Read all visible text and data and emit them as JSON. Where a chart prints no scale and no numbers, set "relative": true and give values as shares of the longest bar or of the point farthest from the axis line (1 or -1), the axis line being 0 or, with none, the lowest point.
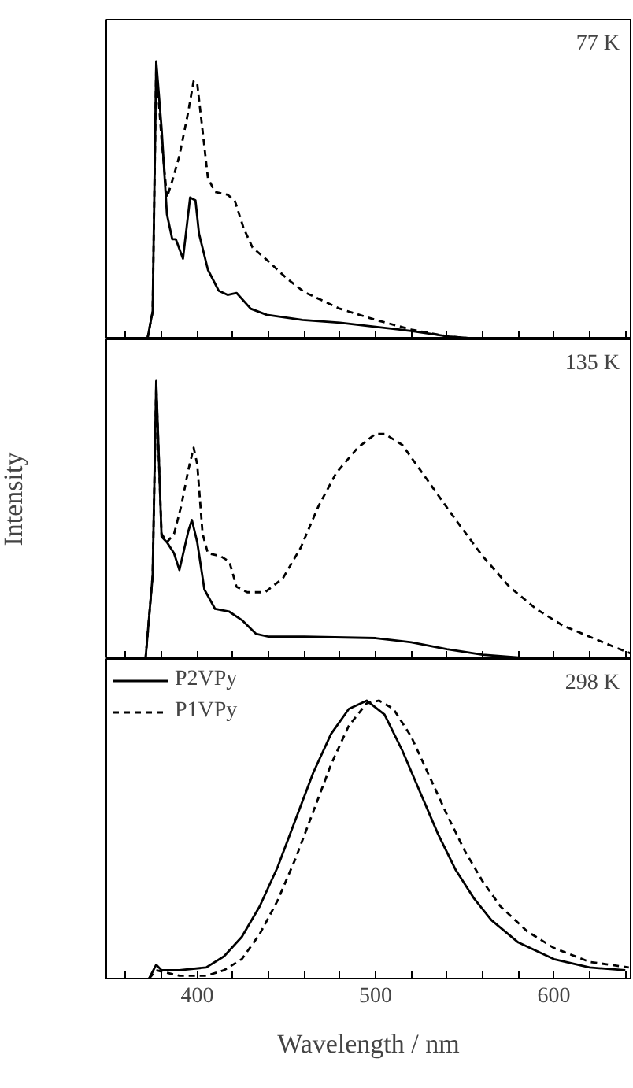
{
  "chart_data": [
    {
      "type": "line",
      "relative": true,
      "annotations": [
        "77 K"
      ],
      "tick_labels": false,
      "xlim": [
        349,
        643
      ],
      "xticks": [
        {
          "value": 360,
          "label": null
        },
        {
          "value": 380,
          "label": null
        },
        {
          "value": 400,
          "label": null
        },
        {
          "value": 420,
          "label": null
        },
        {
          "value": 440,
          "label": null
        },
        {
          "value": 460,
          "label": null
        },
        {
          "value": 480,
          "label": null
        },
        {
          "value": 500,
          "label": null
        },
        {
          "value": 520,
          "label": null
        },
        {
          "value": 540,
          "label": null
        },
        {
          "value": 560,
          "label": null
        },
        {
          "value": 580,
          "label": null
        },
        {
          "value": 600,
          "label": null
        },
        {
          "value": 620,
          "label": null
        },
        {
          "value": 640,
          "label": null
        }
      ],
      "series": [
        {
          "color": "#000000",
          "line_style": "solid",
          "x": [
            372,
            375,
            377,
            380,
            383,
            386,
            388,
            392,
            396,
            399,
            401,
            406,
            412,
            417,
            422,
            430,
            439,
            459,
            480,
            500,
            520,
            541,
            561,
            593
          ],
          "values": [
            0,
            0.1,
            1.0,
            0.76,
            0.45,
            0.36,
            0.36,
            0.29,
            0.51,
            0.5,
            0.38,
            0.25,
            0.175,
            0.16,
            0.167,
            0.11,
            0.088,
            0.07,
            0.06,
            0.045,
            0.03,
            0.01,
            0,
            0
          ]
        },
        {
          "color": "#000000",
          "line_style": "dashed",
          "x": [
            372,
            375,
            377,
            380,
            383,
            386,
            390,
            395,
            398,
            400,
            403,
            406,
            410,
            417,
            421,
            426,
            431,
            440,
            450,
            460,
            470,
            480,
            500,
            520,
            541,
            560,
            593
          ],
          "values": [
            0,
            0.1,
            0.98,
            0.72,
            0.51,
            0.57,
            0.66,
            0.82,
            0.93,
            0.92,
            0.75,
            0.58,
            0.53,
            0.52,
            0.5,
            0.4,
            0.33,
            0.28,
            0.22,
            0.17,
            0.14,
            0.11,
            0.07,
            0.035,
            0.01,
            0,
            0
          ]
        }
      ]
    },
    {
      "type": "line",
      "relative": true,
      "annotations": [
        "135 K"
      ],
      "ylabel": "Intensity",
      "tick_labels": false,
      "xlim": [
        349,
        643
      ],
      "xticks": [
        {
          "value": 360,
          "label": null
        },
        {
          "value": 380,
          "label": null
        },
        {
          "value": 400,
          "label": null
        },
        {
          "value": 420,
          "label": null
        },
        {
          "value": 440,
          "label": null
        },
        {
          "value": 460,
          "label": null
        },
        {
          "value": 480,
          "label": null
        },
        {
          "value": 500,
          "label": null
        },
        {
          "value": 520,
          "label": null
        },
        {
          "value": 540,
          "label": null
        },
        {
          "value": 560,
          "label": null
        },
        {
          "value": 580,
          "label": null
        },
        {
          "value": 600,
          "label": null
        },
        {
          "value": 620,
          "label": null
        },
        {
          "value": 640,
          "label": null
        }
      ],
      "series": [
        {
          "color": "#000000",
          "line_style": "solid",
          "x": [
            371,
            375,
            377,
            380,
            383,
            387,
            390,
            395,
            397,
            400,
            404,
            410,
            418,
            425,
            433,
            440,
            460,
            500,
            520,
            540,
            560,
            580,
            600
          ],
          "values": [
            0,
            0.3,
            1.0,
            0.44,
            0.42,
            0.38,
            0.32,
            0.46,
            0.5,
            0.42,
            0.25,
            0.18,
            0.17,
            0.14,
            0.09,
            0.08,
            0.08,
            0.075,
            0.06,
            0.035,
            0.015,
            0.005,
            0
          ]
        },
        {
          "color": "#000000",
          "line_style": "dashed",
          "x": [
            371,
            375,
            377,
            380,
            383,
            387,
            391,
            395,
            398,
            400,
            403,
            406,
            413,
            418,
            422,
            428,
            438,
            448,
            458,
            468,
            478,
            490,
            500,
            505,
            515,
            525,
            535,
            545,
            560,
            575,
            590,
            605,
            620,
            635,
            643
          ],
          "values": [
            0,
            0.3,
            0.98,
            0.45,
            0.42,
            0.45,
            0.55,
            0.68,
            0.76,
            0.7,
            0.45,
            0.38,
            0.37,
            0.35,
            0.26,
            0.24,
            0.24,
            0.29,
            0.4,
            0.55,
            0.67,
            0.76,
            0.81,
            0.81,
            0.77,
            0.68,
            0.59,
            0.5,
            0.37,
            0.26,
            0.18,
            0.12,
            0.08,
            0.04,
            0.02
          ]
        }
      ]
    },
    {
      "type": "line",
      "relative": true,
      "annotations": [
        "298 K"
      ],
      "xlabel": "Wavelength / nm",
      "tick_labels": "x",
      "legend": "top left",
      "xlim": [
        349,
        643
      ],
      "xticks": [
        {
          "value": 360,
          "label": null
        },
        {
          "value": 380,
          "label": null
        },
        400,
        {
          "value": 420,
          "label": null
        },
        {
          "value": 440,
          "label": null
        },
        {
          "value": 460,
          "label": null
        },
        {
          "value": 480,
          "label": null
        },
        500,
        {
          "value": 520,
          "label": null
        },
        {
          "value": 540,
          "label": null
        },
        {
          "value": 560,
          "label": null
        },
        {
          "value": 580,
          "label": null
        },
        600,
        {
          "value": 620,
          "label": null
        },
        {
          "value": 640,
          "label": null
        }
      ],
      "series": [
        {
          "name": "P2VPy",
          "color": "#000000",
          "line_style": "solid",
          "x": [
            373,
            377,
            380,
            390,
            405,
            415,
            425,
            435,
            445,
            455,
            465,
            475,
            485,
            495,
            505,
            515,
            525,
            535,
            545,
            555,
            565,
            580,
            600,
            620,
            640
          ],
          "values": [
            0,
            0.05,
            0.03,
            0.03,
            0.04,
            0.08,
            0.15,
            0.26,
            0.4,
            0.57,
            0.74,
            0.88,
            0.97,
            1.0,
            0.95,
            0.82,
            0.67,
            0.52,
            0.39,
            0.29,
            0.21,
            0.13,
            0.07,
            0.04,
            0.03
          ]
        },
        {
          "name": "P1VPy",
          "color": "#000000",
          "line_style": "dashed",
          "x": [
            373,
            377,
            390,
            405,
            415,
            425,
            435,
            445,
            455,
            465,
            475,
            485,
            495,
            502,
            510,
            520,
            530,
            540,
            550,
            560,
            570,
            585,
            600,
            620,
            642
          ],
          "values": [
            0,
            0.03,
            0.01,
            0.01,
            0.03,
            0.07,
            0.16,
            0.28,
            0.43,
            0.6,
            0.77,
            0.91,
            0.99,
            1.0,
            0.97,
            0.87,
            0.73,
            0.59,
            0.46,
            0.35,
            0.26,
            0.17,
            0.11,
            0.06,
            0.04
          ]
        }
      ]
    }
  ]
}
